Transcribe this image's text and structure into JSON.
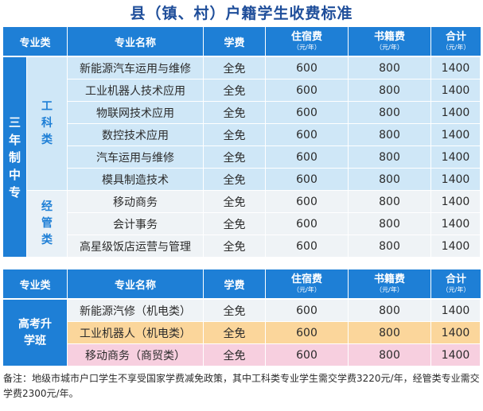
{
  "title": "县（镇、村）户籍学生收费标准",
  "headers": {
    "category": "专业类",
    "major": "专业名称",
    "tuition": "学费",
    "lodging": "住宿费",
    "books": "书籍费",
    "total": "合计",
    "unit": "（元/年）"
  },
  "section1": {
    "category": "三年制中专",
    "groups": [
      {
        "name": "工科类",
        "rows": [
          {
            "major": "新能源汽车运用与维修",
            "tuition": "全免",
            "lodging": "600",
            "books": "800",
            "total": "1400"
          },
          {
            "major": "工业机器人技术应用",
            "tuition": "全免",
            "lodging": "600",
            "books": "800",
            "total": "1400"
          },
          {
            "major": "物联网技术应用",
            "tuition": "全免",
            "lodging": "600",
            "books": "800",
            "total": "1400"
          },
          {
            "major": "数控技术应用",
            "tuition": "全免",
            "lodging": "600",
            "books": "800",
            "total": "1400"
          },
          {
            "major": "汽车运用与维修",
            "tuition": "全免",
            "lodging": "600",
            "books": "800",
            "total": "1400"
          },
          {
            "major": "模具制造技术",
            "tuition": "全免",
            "lodging": "600",
            "books": "800",
            "total": "1400"
          }
        ]
      },
      {
        "name": "经管类",
        "rows": [
          {
            "major": "移动商务",
            "tuition": "全免",
            "lodging": "600",
            "books": "800",
            "total": "1400"
          },
          {
            "major": "会计事务",
            "tuition": "全免",
            "lodging": "600",
            "books": "800",
            "total": "1400"
          },
          {
            "major": "高星级饭店运营与管理",
            "tuition": "全免",
            "lodging": "600",
            "books": "800",
            "total": "1400"
          }
        ]
      }
    ]
  },
  "section2": {
    "category": "高考升学班",
    "rows": [
      {
        "major": "新能源汽修（机电类）",
        "tuition": "全免",
        "lodging": "600",
        "books": "800",
        "total": "1400"
      },
      {
        "major": "工业机器人（机电类）",
        "tuition": "全免",
        "lodging": "600",
        "books": "800",
        "total": "1400"
      },
      {
        "major": "移动商务（商贸类）",
        "tuition": "全免",
        "lodging": "600",
        "books": "800",
        "total": "1400"
      }
    ]
  },
  "note": "备注：地级市城市户口学生不享受国家学费减免政策，其中工科类专业学生需交学费3220元/年，经管类专业需交学费2300元/年。",
  "colors": {
    "header_blue": "#1e7fd6",
    "row_light_blue": "#cfe7f7",
    "row_grey": "#eff3f6",
    "row_orange": "#fbd69b",
    "row_pink": "#f7cfdf",
    "title_blue": "#1f4e9a"
  }
}
